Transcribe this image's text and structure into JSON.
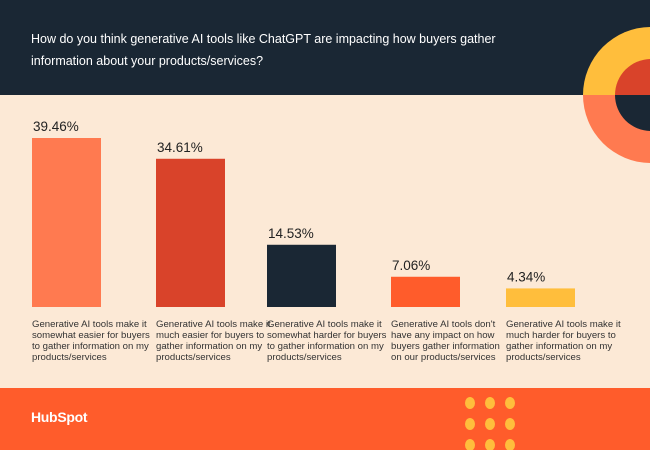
{
  "chart_data": {
    "type": "bar",
    "title": "How do you think generative AI tools like ChatGPT are impacting how buyers gather information about your products/services?",
    "categories": [
      "Generative AI tools make it somewhat easier for buyers to gather information on my products/services",
      "Generative AI tools make it much easier for buyers to gather information on my products/services",
      "Generative AI tools make it somewhat harder for buyers to gather information on my products/services",
      "Generative AI tools don't have any impact on how buyers gather information on our products/services",
      "Generative AI tools make it much harder for buyers to gather information on my products/services"
    ],
    "values": [
      39.46,
      34.61,
      14.53,
      7.06,
      4.34
    ],
    "data_labels": [
      "39.46%",
      "34.61%",
      "14.53%",
      "7.06%",
      "4.34%"
    ],
    "colors": [
      "#ff7a50",
      "#d9432a",
      "#1a2734",
      "#ff5c2b",
      "#ffbe3c"
    ],
    "xlabel": "",
    "ylabel": "",
    "ylim": [
      0,
      40
    ],
    "grid": false
  },
  "brand": {
    "logo_text": "HubSpot"
  },
  "theme": {
    "header_bg": "#1a2734",
    "background": "#fce9d6",
    "footer_bg": "#ff5c2b",
    "dots": "#ffbe3c"
  }
}
